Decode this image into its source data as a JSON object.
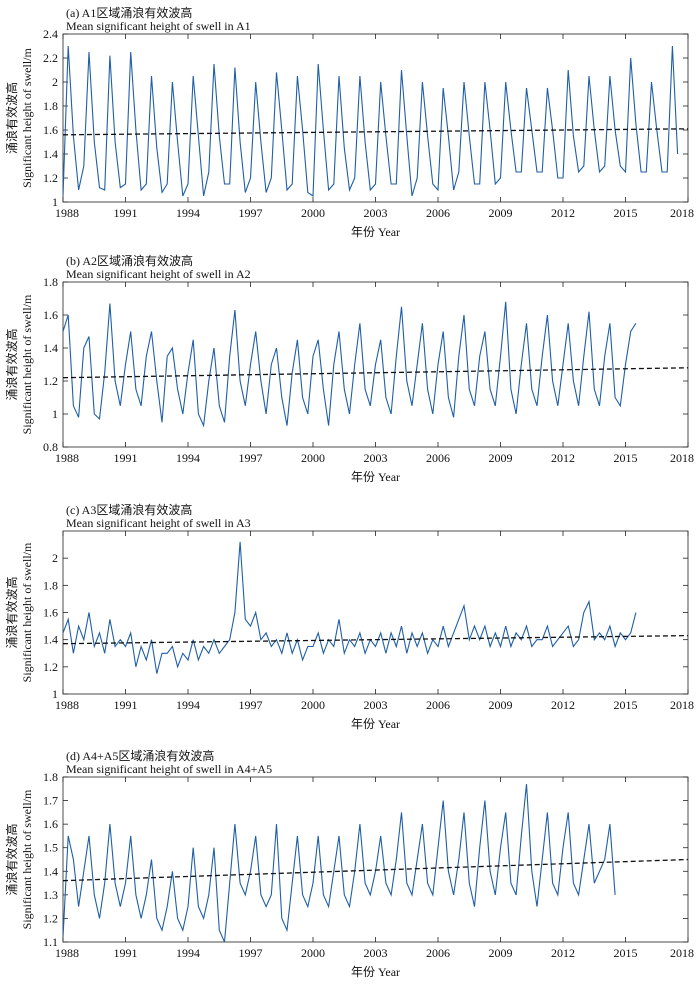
{
  "chart_data": [
    {
      "type": "line",
      "title": "(a) A1区域涌浪有效波高",
      "subtitle": "Mean significant height of swell in A1",
      "xlabel": "年份 Year",
      "ylabel_cn": "涌浪有效波高",
      "ylabel_en": "Significant height of swell/m",
      "xlim": [
        1988,
        2018
      ],
      "ylim": [
        1,
        2.4
      ],
      "xticks": [
        "1988",
        "1991",
        "1994",
        "1997",
        "2000",
        "2003",
        "2006",
        "2009",
        "2012",
        "2015",
        "2018"
      ],
      "yticks": [
        "1",
        "1.2",
        "1.4",
        "1.6",
        "1.8",
        "2",
        "2.2",
        "2.4"
      ],
      "series": [
        {
          "x_start": 1988.0,
          "x_step": 0.25,
          "y": [
            1.05,
            2.3,
            1.55,
            1.1,
            1.3,
            2.25,
            1.5,
            1.12,
            1.1,
            2.22,
            1.5,
            1.12,
            1.15,
            2.25,
            1.6,
            1.1,
            1.15,
            2.05,
            1.45,
            1.08,
            1.15,
            2.0,
            1.5,
            1.05,
            1.15,
            2.05,
            1.55,
            1.05,
            1.25,
            2.15,
            1.55,
            1.15,
            1.15,
            2.12,
            1.5,
            1.08,
            1.2,
            2.0,
            1.5,
            1.08,
            1.2,
            2.08,
            1.6,
            1.1,
            1.15,
            2.05,
            1.6,
            1.08,
            1.05,
            2.15,
            1.6,
            1.1,
            1.15,
            2.05,
            1.45,
            1.1,
            1.2,
            2.05,
            1.5,
            1.1,
            1.15,
            2.0,
            1.55,
            1.15,
            1.15,
            2.1,
            1.55,
            1.05,
            1.2,
            2.0,
            1.55,
            1.15,
            1.1,
            1.95,
            1.55,
            1.1,
            1.25,
            2.0,
            1.55,
            1.15,
            1.15,
            2.0,
            1.6,
            1.15,
            1.2,
            2.0,
            1.6,
            1.25,
            1.25,
            1.95,
            1.6,
            1.25,
            1.25,
            1.95,
            1.6,
            1.2,
            1.2,
            2.1,
            1.55,
            1.25,
            1.3,
            2.05,
            1.6,
            1.25,
            1.3,
            2.05,
            1.6,
            1.3,
            1.25,
            2.2,
            1.65,
            1.25,
            1.25,
            2.0,
            1.6,
            1.25,
            1.25,
            2.3,
            1.4
          ],
          "color": "#1f5fa6"
        },
        {
          "name": "trend",
          "x": [
            1988,
            2018
          ],
          "y": [
            1.56,
            1.61
          ],
          "style": "dashed",
          "color": "#111111"
        }
      ]
    },
    {
      "type": "line",
      "title": "(b) A2区域涌浪有效波高",
      "subtitle": "Mean significant height of swell in A2",
      "xlabel": "年份 Year",
      "ylabel_cn": "涌浪有效波高",
      "ylabel_en": "Significant height of swell/m",
      "xlim": [
        1988,
        2018
      ],
      "ylim": [
        0.8,
        1.8
      ],
      "xticks": [
        "1988",
        "1991",
        "1994",
        "1997",
        "2000",
        "2003",
        "2006",
        "2009",
        "2012",
        "2015",
        "2018"
      ],
      "yticks": [
        "0.8",
        "1",
        "1.2",
        "1.4",
        "1.6",
        "1.8"
      ],
      "series": [
        {
          "x_start": 1988.0,
          "x_step": 0.25,
          "y": [
            1.5,
            1.6,
            1.05,
            0.98,
            1.4,
            1.47,
            1.0,
            0.97,
            1.25,
            1.67,
            1.2,
            1.05,
            1.3,
            1.5,
            1.15,
            1.05,
            1.35,
            1.5,
            1.2,
            0.95,
            1.35,
            1.4,
            1.15,
            1.0,
            1.25,
            1.45,
            1.0,
            0.93,
            1.2,
            1.4,
            1.05,
            0.95,
            1.35,
            1.63,
            1.2,
            1.05,
            1.3,
            1.5,
            1.2,
            1.0,
            1.3,
            1.4,
            1.1,
            0.93,
            1.25,
            1.45,
            1.1,
            1.0,
            1.35,
            1.45,
            1.15,
            0.93,
            1.3,
            1.5,
            1.15,
            1.0,
            1.3,
            1.55,
            1.15,
            1.05,
            1.3,
            1.45,
            1.1,
            1.0,
            1.35,
            1.65,
            1.2,
            1.05,
            1.3,
            1.55,
            1.15,
            1.0,
            1.3,
            1.5,
            1.1,
            0.98,
            1.35,
            1.6,
            1.15,
            1.05,
            1.35,
            1.5,
            1.15,
            1.05,
            1.35,
            1.68,
            1.15,
            1.0,
            1.3,
            1.55,
            1.15,
            1.05,
            1.35,
            1.6,
            1.2,
            1.05,
            1.3,
            1.55,
            1.2,
            1.05,
            1.35,
            1.62,
            1.15,
            1.05,
            1.35,
            1.55,
            1.1,
            1.05,
            1.3,
            1.5,
            1.55
          ],
          "color": "#1f5fa6"
        },
        {
          "name": "trend",
          "x": [
            1988,
            2018
          ],
          "y": [
            1.22,
            1.28
          ],
          "style": "dashed",
          "color": "#111111"
        }
      ]
    },
    {
      "type": "line",
      "title": "(c) A3区域涌浪有效波高",
      "subtitle": "Mean significant height of swell in A3",
      "xlabel": "年份 Year",
      "ylabel_cn": "涌浪有效波高",
      "ylabel_en": "Significant height of swell/m",
      "xlim": [
        1988,
        2018
      ],
      "ylim": [
        1,
        2.2
      ],
      "xticks": [
        "1988",
        "1991",
        "1994",
        "1997",
        "2000",
        "2003",
        "2006",
        "2009",
        "2012",
        "2015",
        "2018"
      ],
      "yticks": [
        "1",
        "1.2",
        "1.4",
        "1.6",
        "1.8",
        "2"
      ],
      "series": [
        {
          "x_start": 1988.0,
          "x_step": 0.25,
          "y": [
            1.45,
            1.55,
            1.3,
            1.5,
            1.4,
            1.6,
            1.35,
            1.45,
            1.3,
            1.55,
            1.35,
            1.4,
            1.35,
            1.45,
            1.2,
            1.35,
            1.25,
            1.4,
            1.15,
            1.3,
            1.3,
            1.35,
            1.2,
            1.3,
            1.25,
            1.4,
            1.25,
            1.35,
            1.3,
            1.4,
            1.3,
            1.35,
            1.4,
            1.6,
            2.12,
            1.55,
            1.5,
            1.6,
            1.4,
            1.45,
            1.35,
            1.4,
            1.3,
            1.45,
            1.3,
            1.4,
            1.25,
            1.35,
            1.35,
            1.45,
            1.3,
            1.4,
            1.35,
            1.55,
            1.3,
            1.4,
            1.35,
            1.45,
            1.3,
            1.4,
            1.35,
            1.45,
            1.3,
            1.45,
            1.35,
            1.5,
            1.3,
            1.45,
            1.35,
            1.45,
            1.3,
            1.4,
            1.35,
            1.5,
            1.35,
            1.45,
            1.55,
            1.65,
            1.4,
            1.5,
            1.4,
            1.5,
            1.35,
            1.45,
            1.35,
            1.5,
            1.35,
            1.45,
            1.4,
            1.5,
            1.35,
            1.4,
            1.4,
            1.5,
            1.35,
            1.4,
            1.45,
            1.5,
            1.35,
            1.4,
            1.6,
            1.68,
            1.4,
            1.45,
            1.4,
            1.5,
            1.35,
            1.45,
            1.4,
            1.45,
            1.6
          ],
          "color": "#1f5fa6"
        },
        {
          "name": "trend",
          "x": [
            1988,
            2018
          ],
          "y": [
            1.37,
            1.43
          ],
          "style": "dashed",
          "color": "#111111"
        }
      ]
    },
    {
      "type": "line",
      "title": "(d) A4+A5区域涌浪有效波高",
      "subtitle": "Mean significant height of swell in A4+A5",
      "xlabel": "年份 Year",
      "ylabel_cn": "涌浪有效波高",
      "ylabel_en": "Significant height of swell/m",
      "xlim": [
        1988,
        2018
      ],
      "ylim": [
        1.1,
        1.8
      ],
      "xticks": [
        "1988",
        "1991",
        "1994",
        "1997",
        "2000",
        "2003",
        "2006",
        "2009",
        "2012",
        "2015",
        "2018"
      ],
      "yticks": [
        "1.1",
        "1.2",
        "1.3",
        "1.4",
        "1.5",
        "1.6",
        "1.7",
        "1.8"
      ],
      "series": [
        {
          "x_start": 1988.0,
          "x_step": 0.25,
          "y": [
            1.12,
            1.55,
            1.45,
            1.25,
            1.4,
            1.55,
            1.3,
            1.2,
            1.35,
            1.6,
            1.35,
            1.25,
            1.35,
            1.55,
            1.3,
            1.2,
            1.3,
            1.45,
            1.2,
            1.15,
            1.25,
            1.4,
            1.2,
            1.15,
            1.25,
            1.5,
            1.25,
            1.2,
            1.3,
            1.5,
            1.15,
            1.1,
            1.35,
            1.6,
            1.35,
            1.3,
            1.4,
            1.55,
            1.3,
            1.25,
            1.3,
            1.6,
            1.2,
            1.15,
            1.35,
            1.55,
            1.3,
            1.25,
            1.35,
            1.55,
            1.3,
            1.25,
            1.4,
            1.55,
            1.3,
            1.25,
            1.4,
            1.6,
            1.35,
            1.3,
            1.4,
            1.55,
            1.35,
            1.3,
            1.45,
            1.65,
            1.35,
            1.3,
            1.45,
            1.6,
            1.35,
            1.3,
            1.5,
            1.7,
            1.4,
            1.3,
            1.45,
            1.65,
            1.35,
            1.25,
            1.5,
            1.7,
            1.4,
            1.3,
            1.5,
            1.65,
            1.35,
            1.3,
            1.55,
            1.77,
            1.4,
            1.25,
            1.45,
            1.65,
            1.35,
            1.3,
            1.5,
            1.65,
            1.35,
            1.3,
            1.45,
            1.6,
            1.35,
            1.4,
            1.45,
            1.6,
            1.3
          ],
          "color": "#1f5fa6"
        },
        {
          "name": "trend",
          "x": [
            1988,
            2018
          ],
          "y": [
            1.36,
            1.45
          ],
          "style": "dashed",
          "color": "#111111"
        }
      ]
    }
  ]
}
